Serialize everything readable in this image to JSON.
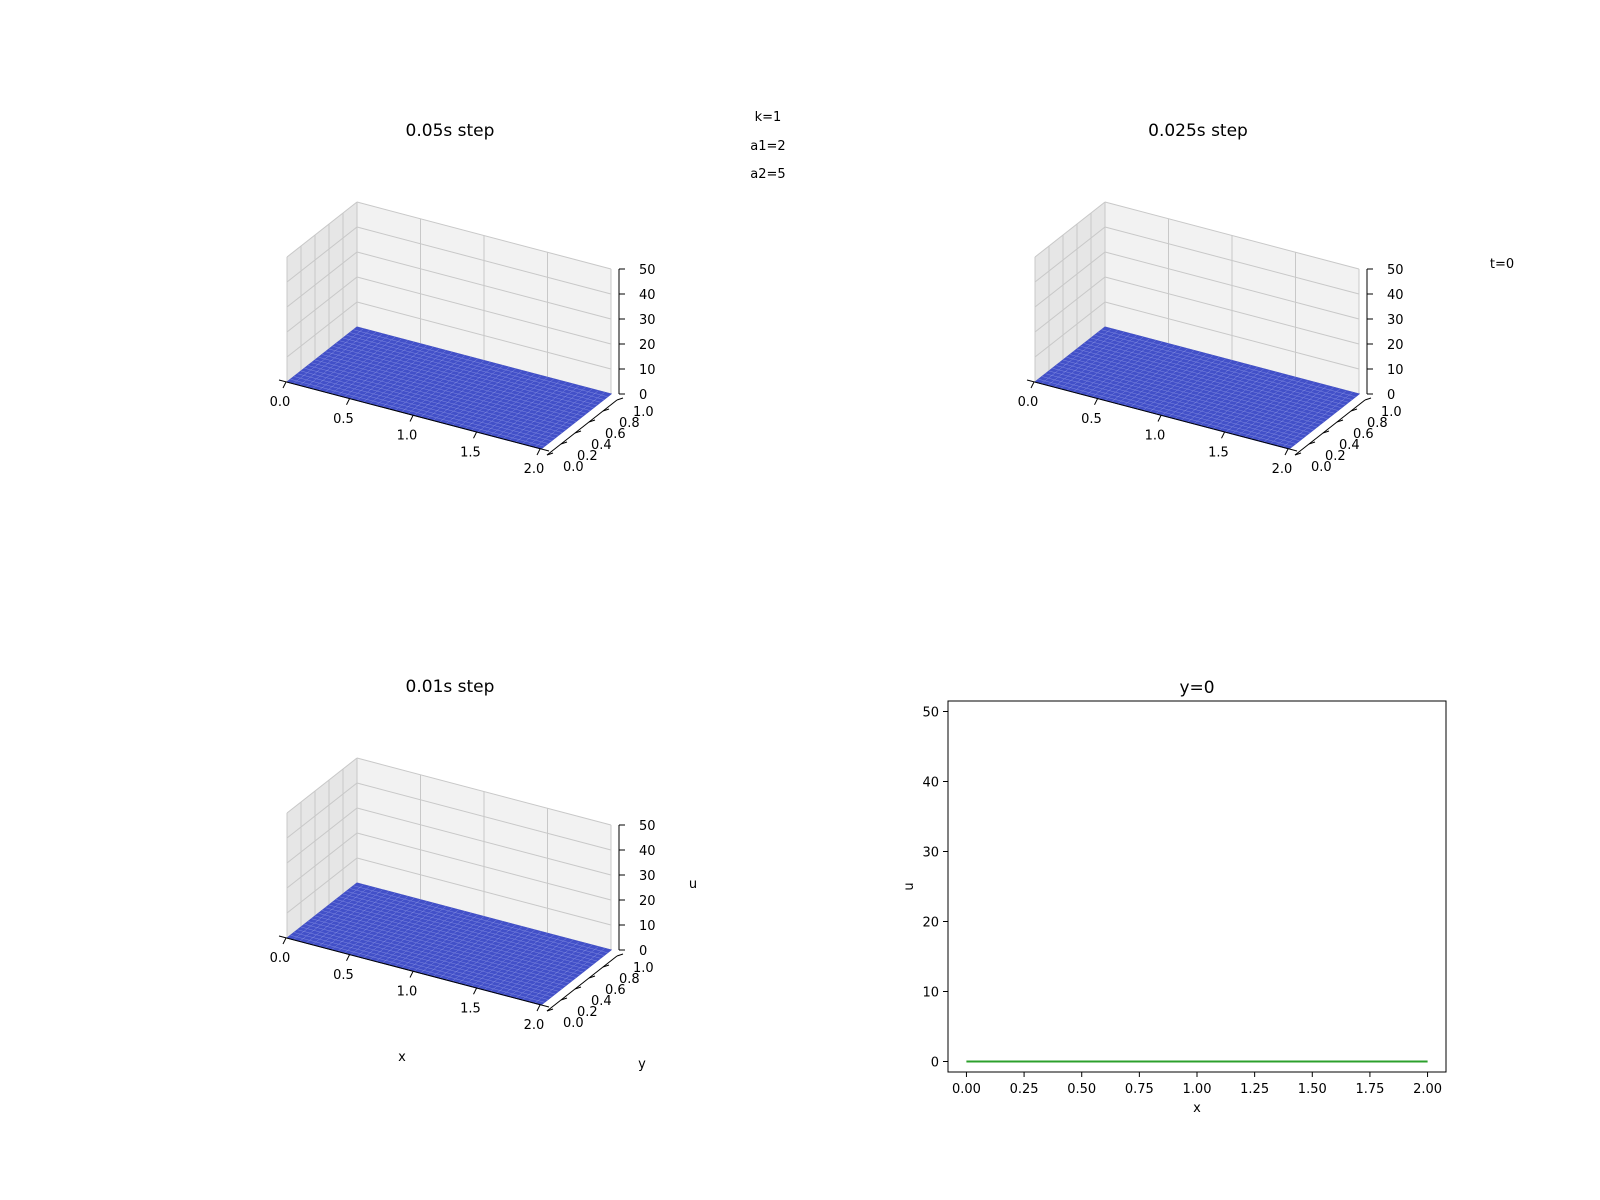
{
  "params": [
    {
      "label": "k=1"
    },
    {
      "label": "a1=2"
    },
    {
      "label": "a2=5"
    }
  ],
  "time_label": "t=0",
  "colors": {
    "surface_fill": "#4250c8",
    "surface_grid": "#7f89e0",
    "pane_grid": "#c8c8c8",
    "axis": "#000000",
    "line": "#2ca02c"
  },
  "chart_data": [
    {
      "type": "surface3d",
      "title": "0.05s step",
      "x_ticks": [
        "0.0",
        "0.5",
        "1.0",
        "1.5",
        "2.0"
      ],
      "y_ticks": [
        "0.0",
        "0.2",
        "0.4",
        "0.6",
        "0.8",
        "1.0"
      ],
      "z_ticks": [
        "0",
        "10",
        "20",
        "30",
        "40",
        "50"
      ],
      "xlabel": "",
      "ylabel": "",
      "zlabel": "",
      "xlim": [
        0,
        2
      ],
      "ylim": [
        0,
        1
      ],
      "zlim": [
        0,
        50
      ],
      "z_value": 0
    },
    {
      "type": "surface3d",
      "title": "0.025s step",
      "x_ticks": [
        "0.0",
        "0.5",
        "1.0",
        "1.5",
        "2.0"
      ],
      "y_ticks": [
        "0.0",
        "0.2",
        "0.4",
        "0.6",
        "0.8",
        "1.0"
      ],
      "z_ticks": [
        "0",
        "10",
        "20",
        "30",
        "40",
        "50"
      ],
      "xlabel": "",
      "ylabel": "",
      "zlabel": "",
      "xlim": [
        0,
        2
      ],
      "ylim": [
        0,
        1
      ],
      "zlim": [
        0,
        50
      ],
      "z_value": 0
    },
    {
      "type": "surface3d",
      "title": "0.01s step",
      "x_ticks": [
        "0.0",
        "0.5",
        "1.0",
        "1.5",
        "2.0"
      ],
      "y_ticks": [
        "0.0",
        "0.2",
        "0.4",
        "0.6",
        "0.8",
        "1.0"
      ],
      "z_ticks": [
        "0",
        "10",
        "20",
        "30",
        "40",
        "50"
      ],
      "xlabel": "x",
      "ylabel": "y",
      "zlabel": "u",
      "xlim": [
        0,
        2
      ],
      "ylim": [
        0,
        1
      ],
      "zlim": [
        0,
        50
      ],
      "z_value": 0
    },
    {
      "type": "line",
      "title": "y=0",
      "xlabel": "x",
      "ylabel": "u",
      "xlim": [
        -0.08,
        2.08
      ],
      "ylim": [
        -1.5,
        51.5
      ],
      "x_ticks": [
        "0.00",
        "0.25",
        "0.50",
        "0.75",
        "1.00",
        "1.25",
        "1.50",
        "1.75",
        "2.00"
      ],
      "y_ticks": [
        "0",
        "10",
        "20",
        "30",
        "40",
        "50"
      ],
      "series": [
        {
          "x": [
            0,
            0.25,
            0.5,
            0.75,
            1.0,
            1.25,
            1.5,
            1.75,
            2.0
          ],
          "values": [
            0,
            0,
            0,
            0,
            0,
            0,
            0,
            0,
            0
          ]
        }
      ]
    }
  ]
}
